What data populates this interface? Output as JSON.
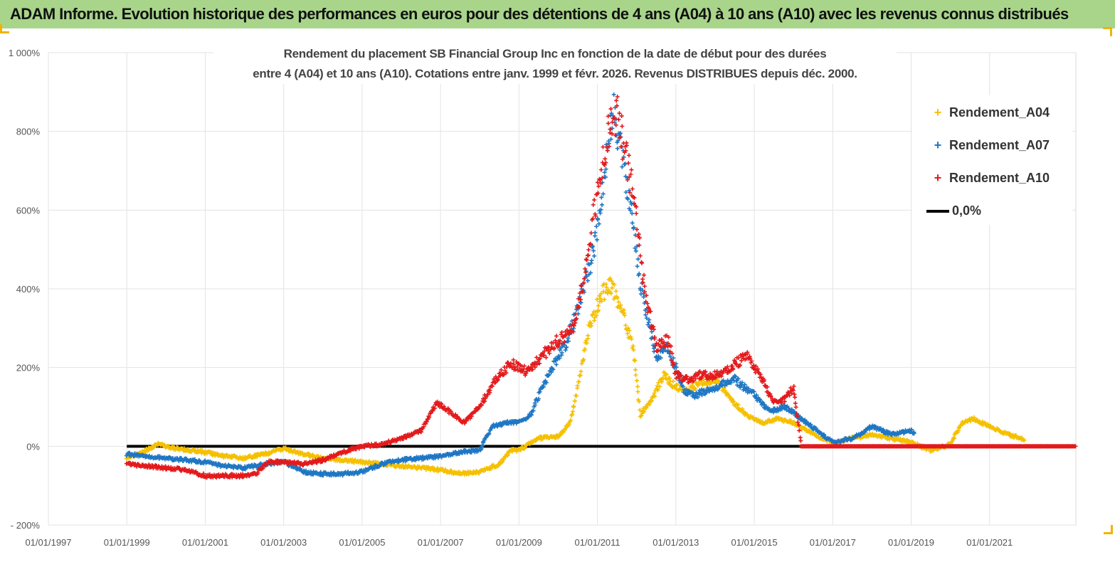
{
  "header": {
    "title": "ADAM Informe. Evolution historique des performances en euros pour des détentions de 4 ans (A04) à 10 ans (A10) avec les revenus connus distribués"
  },
  "chart_data": {
    "type": "scatter",
    "title_line1": "Rendement du placement SB Financial Group Inc en fonction de la date de début pour des durées",
    "title_line2": "entre 4 (A04) et 10 ans (A10).  Cotations entre janv. 1999 et févr. 2026. Revenus DISTRIBUES depuis déc. 2000.",
    "xlim": [
      1997.0,
      2023.2
    ],
    "ylim": [
      -200,
      1000
    ],
    "x_ticks": [
      {
        "x": 1997,
        "label": "01/01/1997"
      },
      {
        "x": 1999,
        "label": "01/01/1999"
      },
      {
        "x": 2001,
        "label": "01/01/2001"
      },
      {
        "x": 2003,
        "label": "01/01/2003"
      },
      {
        "x": 2005,
        "label": "01/01/2005"
      },
      {
        "x": 2007,
        "label": "01/01/2007"
      },
      {
        "x": 2009,
        "label": "01/01/2009"
      },
      {
        "x": 2011,
        "label": "01/01/2011"
      },
      {
        "x": 2013,
        "label": "01/01/2013"
      },
      {
        "x": 2015,
        "label": "01/01/2015"
      },
      {
        "x": 2017,
        "label": "01/01/2017"
      },
      {
        "x": 2019,
        "label": "01/01/2019"
      },
      {
        "x": 2021,
        "label": "01/01/2021"
      }
    ],
    "y_ticks": [
      {
        "y": 1000,
        "label": "1 000%"
      },
      {
        "y": 800,
        "label": "800%"
      },
      {
        "y": 600,
        "label": "600%"
      },
      {
        "y": 400,
        "label": "400%"
      },
      {
        "y": 200,
        "label": "200%"
      },
      {
        "y": 0,
        "label": "0%"
      },
      {
        "y": -200,
        "label": "- 200%"
      }
    ],
    "series": [
      {
        "name": "Rendement_A04",
        "color": "#f5c000",
        "points": [
          [
            1999.0,
            -30
          ],
          [
            1999.5,
            -10
          ],
          [
            1999.8,
            5
          ],
          [
            2000.2,
            -5
          ],
          [
            2000.6,
            -10
          ],
          [
            2001.0,
            -15
          ],
          [
            2001.5,
            -25
          ],
          [
            2002.0,
            -30
          ],
          [
            2002.5,
            -20
          ],
          [
            2003.0,
            -5
          ],
          [
            2003.5,
            -20
          ],
          [
            2004.0,
            -30
          ],
          [
            2004.5,
            -35
          ],
          [
            2005.0,
            -40
          ],
          [
            2005.5,
            -45
          ],
          [
            2006.0,
            -50
          ],
          [
            2006.5,
            -55
          ],
          [
            2007.0,
            -60
          ],
          [
            2007.5,
            -70
          ],
          [
            2008.0,
            -65
          ],
          [
            2008.5,
            -45
          ],
          [
            2008.8,
            -10
          ],
          [
            2009.0,
            -10
          ],
          [
            2009.5,
            20
          ],
          [
            2010.0,
            25
          ],
          [
            2010.3,
            60
          ],
          [
            2010.5,
            150
          ],
          [
            2010.8,
            300
          ],
          [
            2011.0,
            360
          ],
          [
            2011.3,
            420
          ],
          [
            2011.6,
            350
          ],
          [
            2011.9,
            250
          ],
          [
            2012.1,
            80
          ],
          [
            2012.4,
            120
          ],
          [
            2012.7,
            180
          ],
          [
            2013.0,
            150
          ],
          [
            2013.3,
            140
          ],
          [
            2013.6,
            160
          ],
          [
            2014.0,
            170
          ],
          [
            2014.4,
            120
          ],
          [
            2014.8,
            80
          ],
          [
            2015.2,
            60
          ],
          [
            2015.6,
            70
          ],
          [
            2016.0,
            60
          ],
          [
            2016.5,
            30
          ],
          [
            2017.0,
            10
          ],
          [
            2017.5,
            20
          ],
          [
            2018.0,
            30
          ],
          [
            2018.5,
            20
          ],
          [
            2019.0,
            10
          ],
          [
            2019.5,
            -10
          ],
          [
            2020.0,
            5
          ],
          [
            2020.3,
            60
          ],
          [
            2020.6,
            70
          ],
          [
            2021.0,
            50
          ],
          [
            2021.5,
            30
          ],
          [
            2021.9,
            15
          ]
        ]
      },
      {
        "name": "Rendement_A07",
        "color": "#1f77c4",
        "points": [
          [
            1999.0,
            -20
          ],
          [
            1999.5,
            -25
          ],
          [
            2000.0,
            -30
          ],
          [
            2000.5,
            -35
          ],
          [
            2001.0,
            -40
          ],
          [
            2001.5,
            -50
          ],
          [
            2002.0,
            -55
          ],
          [
            2002.5,
            -45
          ],
          [
            2003.0,
            -40
          ],
          [
            2003.5,
            -65
          ],
          [
            2004.0,
            -70
          ],
          [
            2004.5,
            -70
          ],
          [
            2005.0,
            -65
          ],
          [
            2005.5,
            -45
          ],
          [
            2006.0,
            -35
          ],
          [
            2006.5,
            -30
          ],
          [
            2007.0,
            -25
          ],
          [
            2007.5,
            -15
          ],
          [
            2008.0,
            -10
          ],
          [
            2008.3,
            50
          ],
          [
            2008.7,
            60
          ],
          [
            2009.0,
            60
          ],
          [
            2009.3,
            80
          ],
          [
            2009.6,
            150
          ],
          [
            2009.9,
            210
          ],
          [
            2010.2,
            260
          ],
          [
            2010.5,
            350
          ],
          [
            2010.8,
            460
          ],
          [
            2011.0,
            550
          ],
          [
            2011.2,
            700
          ],
          [
            2011.4,
            870
          ],
          [
            2011.6,
            750
          ],
          [
            2011.8,
            640
          ],
          [
            2012.0,
            480
          ],
          [
            2012.2,
            350
          ],
          [
            2012.5,
            230
          ],
          [
            2012.8,
            250
          ],
          [
            2013.0,
            200
          ],
          [
            2013.2,
            140
          ],
          [
            2013.5,
            130
          ],
          [
            2014.0,
            150
          ],
          [
            2014.5,
            170
          ],
          [
            2015.0,
            130
          ],
          [
            2015.4,
            90
          ],
          [
            2015.8,
            100
          ],
          [
            2016.2,
            70
          ],
          [
            2016.6,
            40
          ],
          [
            2017.0,
            10
          ],
          [
            2017.5,
            20
          ],
          [
            2018.0,
            50
          ],
          [
            2018.5,
            30
          ],
          [
            2019.0,
            40
          ],
          [
            2019.1,
            30
          ]
        ]
      },
      {
        "name": "Rendement_A10",
        "color": "#e31a1c",
        "points": [
          [
            1999.0,
            -45
          ],
          [
            1999.5,
            -50
          ],
          [
            2000.0,
            -55
          ],
          [
            2000.5,
            -60
          ],
          [
            2001.0,
            -75
          ],
          [
            2001.5,
            -75
          ],
          [
            2002.0,
            -75
          ],
          [
            2002.3,
            -70
          ],
          [
            2002.6,
            -40
          ],
          [
            2003.0,
            -40
          ],
          [
            2003.5,
            -45
          ],
          [
            2004.0,
            -35
          ],
          [
            2004.5,
            -15
          ],
          [
            2005.0,
            0
          ],
          [
            2005.5,
            5
          ],
          [
            2006.0,
            20
          ],
          [
            2006.5,
            40
          ],
          [
            2006.9,
            110
          ],
          [
            2007.2,
            90
          ],
          [
            2007.6,
            60
          ],
          [
            2008.0,
            100
          ],
          [
            2008.4,
            170
          ],
          [
            2008.8,
            210
          ],
          [
            2009.2,
            190
          ],
          [
            2009.6,
            230
          ],
          [
            2010.0,
            270
          ],
          [
            2010.4,
            300
          ],
          [
            2010.7,
            450
          ],
          [
            2011.0,
            650
          ],
          [
            2011.3,
            800
          ],
          [
            2011.5,
            850
          ],
          [
            2011.8,
            700
          ],
          [
            2012.0,
            600
          ],
          [
            2012.2,
            400
          ],
          [
            2012.5,
            250
          ],
          [
            2012.8,
            270
          ],
          [
            2013.0,
            180
          ],
          [
            2013.3,
            170
          ],
          [
            2013.6,
            180
          ],
          [
            2014.0,
            180
          ],
          [
            2014.4,
            200
          ],
          [
            2014.8,
            230
          ],
          [
            2015.2,
            170
          ],
          [
            2015.5,
            110
          ],
          [
            2015.8,
            120
          ],
          [
            2016.0,
            150
          ],
          [
            2016.2,
            0
          ],
          [
            2017.0,
            0
          ],
          [
            2018.0,
            0
          ],
          [
            2019.0,
            0
          ],
          [
            2020.0,
            0
          ],
          [
            2021.0,
            0
          ],
          [
            2022.0,
            0
          ],
          [
            2023.2,
            0
          ]
        ]
      },
      {
        "name": "0,0%",
        "color": "#000000",
        "points": [
          [
            1999.0,
            0
          ],
          [
            2023.2,
            0
          ]
        ]
      }
    ]
  }
}
